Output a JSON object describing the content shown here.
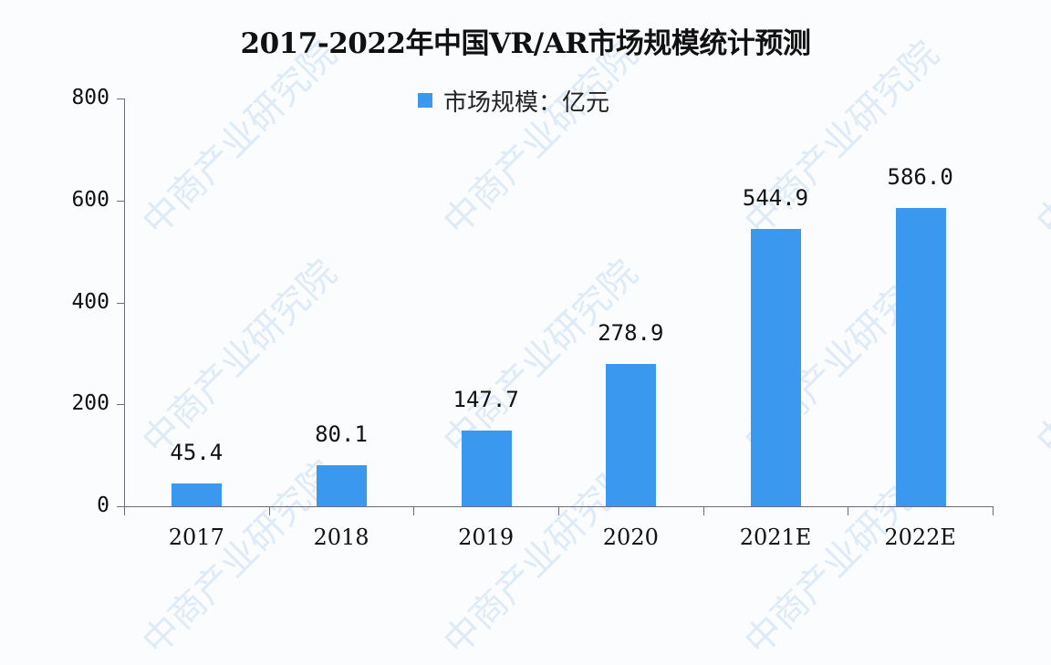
{
  "title": "2017-2022年中国VR/AR市场规模统计预测",
  "legend": {
    "label": "市场规模：亿元",
    "color": "#3a98ee"
  },
  "watermark": "中商产业研究院",
  "yaxis": {
    "ticks": [
      "0",
      "200",
      "400",
      "600",
      "800"
    ]
  },
  "chart_data": {
    "type": "bar",
    "title": "2017-2022年中国VR/AR市场规模统计预测",
    "xlabel": "",
    "ylabel": "",
    "categories": [
      "2017",
      "2018",
      "2019",
      "2020",
      "2021E",
      "2022E"
    ],
    "series": [
      {
        "name": "市场规模：亿元",
        "values": [
          45.4,
          80.1,
          147.7,
          278.9,
          544.9,
          586.0
        ],
        "color": "#3a98ee"
      }
    ],
    "value_labels": [
      "45.4",
      "80.1",
      "147.7",
      "278.9",
      "544.9",
      "586.0"
    ],
    "ylim": [
      0,
      800
    ],
    "yticks": [
      0,
      200,
      400,
      600,
      800
    ],
    "grid": false,
    "legend_position": "top"
  }
}
